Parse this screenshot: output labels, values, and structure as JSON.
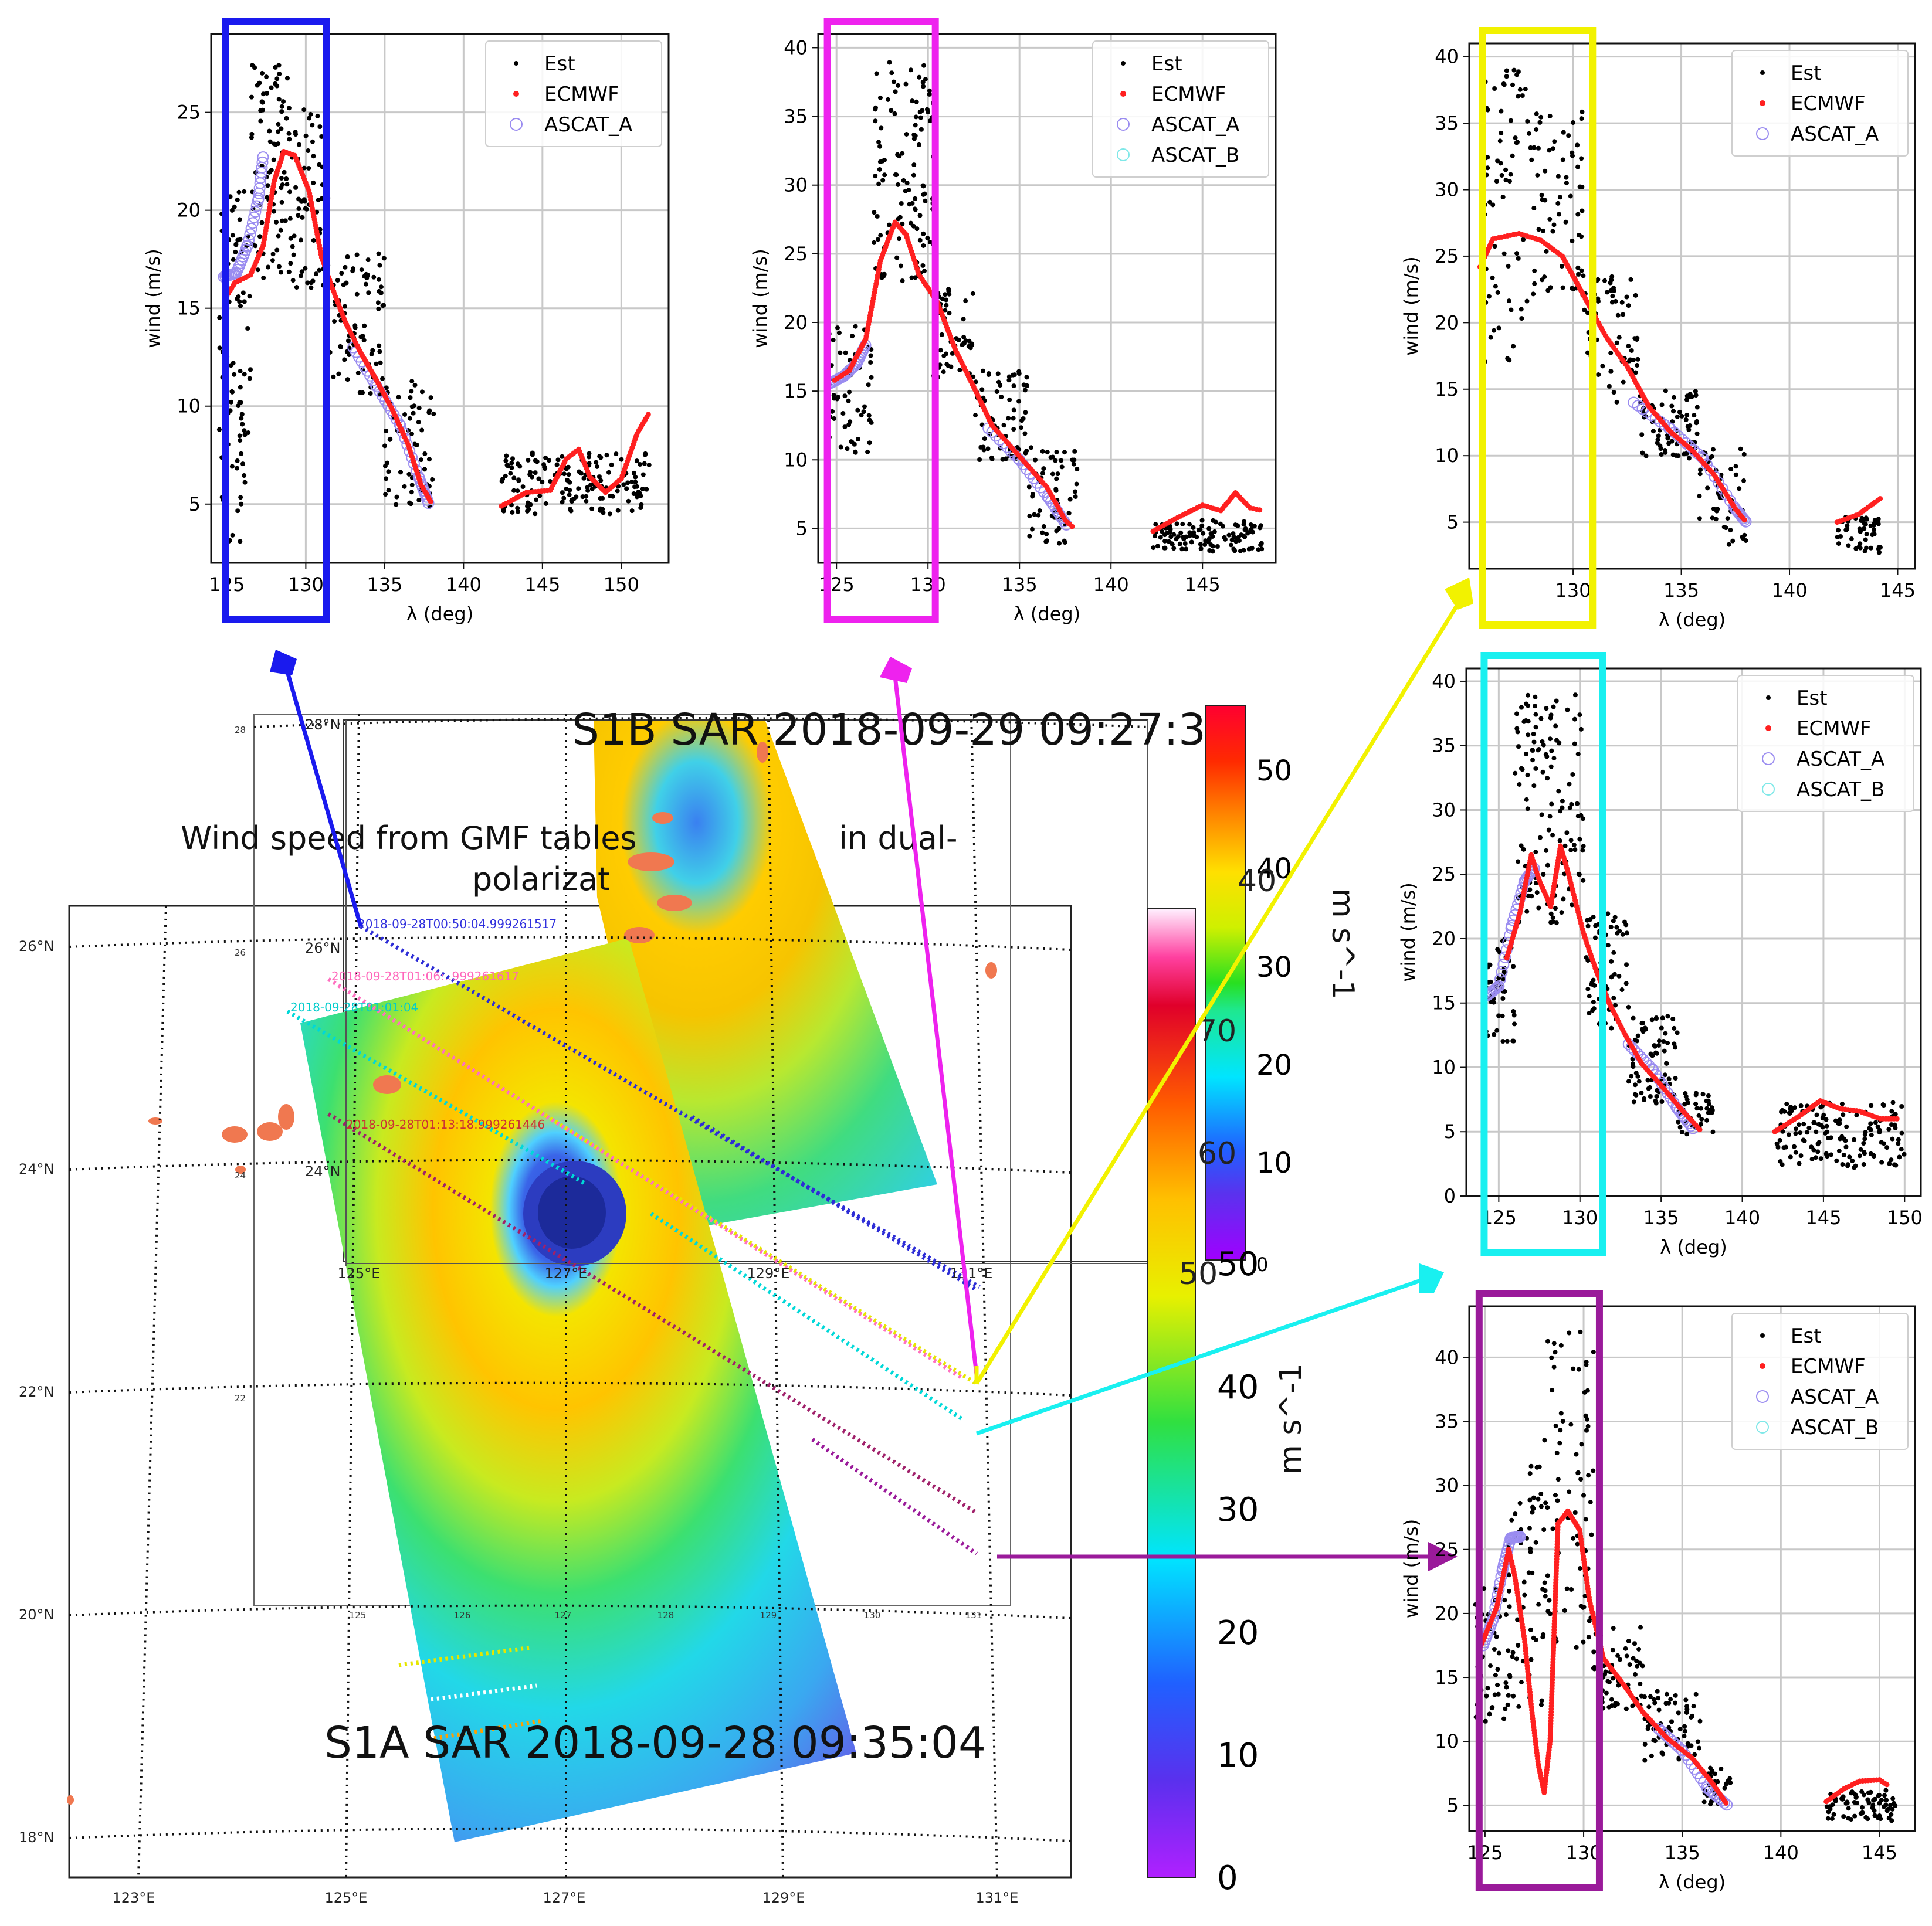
{
  "colors": {
    "est": "#000000",
    "ecmwf": "#ff2020",
    "ascat_a": "#9a8cf0",
    "ascat_b": "#7fe8e8",
    "box_blue": "#1a1aee",
    "box_magenta": "#ee22ee",
    "box_yellow": "#f2f200",
    "box_cyan": "#19f0f0",
    "box_purple": "#9a1a9a",
    "grid": "#c8c8c8"
  },
  "map": {
    "title_s1b": "S1B SAR 2018-09-29 09:27:36",
    "title_s1a": "S1A SAR 2018-09-28 09:35:04",
    "gmf_title_line1": "Wind speed from GMF tables",
    "gmf_title_mid": "in dual-",
    "gmf_title_line2": "polarizat",
    "lat_labels": [
      "26°N",
      "24°N",
      "22°N",
      "20°N",
      "18°N"
    ],
    "lon_labels": [
      "123°E",
      "125°E",
      "127°E",
      "129°E",
      "131°E"
    ],
    "inner_lat_labels": [
      "28°N",
      "26°N",
      "24°N"
    ],
    "inner_lon_labels": [
      "125°E",
      "127°E",
      "129°E",
      "131°E"
    ],
    "small_lat_labels": [
      "28",
      "26",
      "24",
      "22"
    ],
    "small_lon_labels": [
      "125",
      "126",
      "127",
      "128",
      "129",
      "130",
      "131"
    ],
    "track_labels": [
      {
        "text": "2018-09-28T00:50:04.999261517",
        "color": "#3030dd"
      },
      {
        "text": "2018-09-28T01:06:..999261617",
        "color": "#ff66bb"
      },
      {
        "text": "2018-09-28T01:01:04",
        "color": "#00cccc"
      },
      {
        "text": "2018-09-28T01:13:18.999261446",
        "color": "#cc3333"
      }
    ]
  },
  "colorbars": {
    "inner": {
      "ticks": [
        "0",
        "10",
        "20",
        "30",
        "40",
        "50"
      ],
      "label": "m s^-1"
    },
    "outer": {
      "ticks": [
        "0",
        "10",
        "20",
        "30",
        "40",
        "50"
      ],
      "label": "m s^-1"
    },
    "overlap_ticks": [
      "70",
      "60",
      "40",
      "50"
    ]
  },
  "chart_data": [
    {
      "type": "scatter",
      "id": "panel_blue",
      "xlabel": "λ (deg)",
      "ylabel": "wind (m/s)",
      "x_ticks": [
        125,
        130,
        135,
        140,
        145,
        150
      ],
      "y_ticks": [
        5,
        10,
        15,
        20,
        25
      ],
      "xlim": [
        124,
        153
      ],
      "ylim": [
        2,
        29
      ],
      "legend": [
        "Est",
        "ECMWF",
        "ASCAT_A"
      ],
      "legend_position": "top-right",
      "highlight_box_lon": [
        124.9,
        131.3
      ],
      "ecmwf_curve": [
        [
          124.9,
          15.5
        ],
        [
          125.5,
          16.3
        ],
        [
          126.5,
          16.7
        ],
        [
          127.3,
          18.2
        ],
        [
          128,
          21.5
        ],
        [
          128.6,
          23
        ],
        [
          129.3,
          22.8
        ],
        [
          130.2,
          21
        ],
        [
          131,
          17.6
        ],
        [
          131.7,
          16
        ],
        [
          132.5,
          14.3
        ],
        [
          133.5,
          12.7
        ],
        [
          134.5,
          11.3
        ],
        [
          135.5,
          9.8
        ],
        [
          136.5,
          8
        ],
        [
          137.3,
          6
        ],
        [
          138,
          5
        ]
      ],
      "ecmwf_curve_2": [
        [
          142.4,
          4.9
        ],
        [
          144,
          5.6
        ],
        [
          145.5,
          5.7
        ],
        [
          146.5,
          7.3
        ],
        [
          147.3,
          7.8
        ],
        [
          148,
          6.4
        ],
        [
          149,
          5.6
        ],
        [
          150,
          6.3
        ],
        [
          151,
          8.6
        ],
        [
          151.8,
          9.7
        ]
      ],
      "ascat_a_curve": [
        [
          124.8,
          16.6
        ],
        [
          125.6,
          16.8
        ],
        [
          126.3,
          18.2
        ],
        [
          127,
          20.6
        ],
        [
          127.3,
          22.8
        ]
      ],
      "ascat_a_curve_2": [
        [
          133,
          13
        ],
        [
          134.5,
          11
        ],
        [
          136,
          9
        ],
        [
          137.2,
          6.3
        ],
        [
          137.8,
          5
        ]
      ],
      "est_cloud": [
        {
          "lon": [
            124.5,
            126.5
          ],
          "low": 3,
          "high": 21,
          "n": 90
        },
        {
          "lon": [
            126.5,
            129
          ],
          "low": 16.5,
          "high": 27.5,
          "n": 90
        },
        {
          "lon": [
            129,
            131.5
          ],
          "low": 16,
          "high": 25.5,
          "n": 70
        },
        {
          "lon": [
            131.5,
            135
          ],
          "low": 10.5,
          "high": 17.8,
          "n": 80
        },
        {
          "lon": [
            135,
            138.2
          ],
          "low": 4.8,
          "high": 11.5,
          "n": 60
        },
        {
          "lon": [
            142.4,
            151.8
          ],
          "low": 4.5,
          "high": 7.7,
          "n": 160
        }
      ]
    },
    {
      "type": "scatter",
      "id": "panel_magenta",
      "xlabel": "λ (deg)",
      "ylabel": "wind (m/s)",
      "x_ticks": [
        125,
        130,
        135,
        140,
        145
      ],
      "y_ticks": [
        5,
        10,
        15,
        20,
        25,
        30,
        35,
        40
      ],
      "xlim": [
        124,
        149
      ],
      "ylim": [
        2.5,
        41
      ],
      "legend": [
        "Est",
        "ECMWF",
        "ASCAT_A",
        "ASCAT_B"
      ],
      "legend_position": "top-right",
      "highlight_box_lon": [
        124.5,
        130.4
      ],
      "ecmwf_curve": [
        [
          124.9,
          15.8
        ],
        [
          125.7,
          16.5
        ],
        [
          126.6,
          18.8
        ],
        [
          127.4,
          24.5
        ],
        [
          128.2,
          27.3
        ],
        [
          128.8,
          26.4
        ],
        [
          129.5,
          23.5
        ],
        [
          130.5,
          21.5
        ],
        [
          131.5,
          18
        ],
        [
          132.5,
          15.3
        ],
        [
          133.5,
          12.5
        ],
        [
          134.5,
          11
        ],
        [
          135.5,
          9.5
        ],
        [
          136.5,
          8
        ],
        [
          137.5,
          5.6
        ],
        [
          138,
          5
        ]
      ],
      "ecmwf_curve_2": [
        [
          142.3,
          4.8
        ],
        [
          143.5,
          5.7
        ],
        [
          145,
          6.7
        ],
        [
          146,
          6.3
        ],
        [
          146.8,
          7.6
        ],
        [
          147.6,
          6.5
        ],
        [
          148.3,
          6.3
        ]
      ],
      "ascat_a_curve": [
        [
          124.7,
          15.6
        ],
        [
          125.4,
          16.1
        ],
        [
          126.1,
          17
        ],
        [
          126.6,
          18.4
        ]
      ],
      "ascat_a_curve_2": [
        [
          133.3,
          12.3
        ],
        [
          135,
          10
        ],
        [
          136.6,
          7.2
        ],
        [
          137.6,
          5.2
        ]
      ],
      "est_cloud": [
        {
          "lon": [
            124.4,
            127
          ],
          "low": 10.5,
          "high": 20,
          "n": 60
        },
        {
          "lon": [
            127,
            130.3
          ],
          "low": 23,
          "high": 39,
          "n": 120
        },
        {
          "lon": [
            130.3,
            132.5
          ],
          "low": 16,
          "high": 23,
          "n": 50
        },
        {
          "lon": [
            132.5,
            135.5
          ],
          "low": 10,
          "high": 16.5,
          "n": 70
        },
        {
          "lon": [
            135.5,
            138.2
          ],
          "low": 3.8,
          "high": 11,
          "n": 60
        },
        {
          "lon": [
            142.3,
            148.3
          ],
          "low": 3.3,
          "high": 5.6,
          "n": 120
        }
      ]
    },
    {
      "type": "scatter",
      "id": "panel_yellow",
      "xlabel": "λ (deg)",
      "ylabel": "wind (m/s)",
      "x_ticks": [
        130,
        135,
        140,
        145
      ],
      "y_ticks": [
        5,
        10,
        15,
        20,
        25,
        30,
        35,
        40
      ],
      "xlim": [
        125.2,
        145.8
      ],
      "ylim": [
        1.5,
        41
      ],
      "legend": [
        "Est",
        "ECMWF",
        "ASCAT_A"
      ],
      "legend_position": "top-right",
      "highlight_box_lon": [
        125.8,
        130.9
      ],
      "ecmwf_curve": [
        [
          125.7,
          24.2
        ],
        [
          126.3,
          26.3
        ],
        [
          127.5,
          26.7
        ],
        [
          128.5,
          26.2
        ],
        [
          129.5,
          25
        ],
        [
          130.5,
          22
        ],
        [
          131.5,
          19
        ],
        [
          132.5,
          16.7
        ],
        [
          133.5,
          13.7
        ],
        [
          134.5,
          11.8
        ],
        [
          135.5,
          10.4
        ],
        [
          136.5,
          8.6
        ],
        [
          137.5,
          6
        ],
        [
          138,
          5
        ]
      ],
      "ecmwf_curve_2": [
        [
          142.2,
          5
        ],
        [
          143.2,
          5.6
        ],
        [
          144.3,
          6.9
        ]
      ],
      "ascat_a_curve": [
        [
          132.8,
          14
        ],
        [
          134.5,
          12
        ],
        [
          136,
          9.8
        ],
        [
          137.5,
          6
        ],
        [
          138,
          5
        ]
      ],
      "ascat_a_curve_2": [],
      "est_cloud": [
        {
          "lon": [
            125.8,
            128
          ],
          "low": 17,
          "high": 39,
          "n": 70
        },
        {
          "lon": [
            128,
            130.5
          ],
          "low": 22,
          "high": 36,
          "n": 70
        },
        {
          "lon": [
            130.5,
            133
          ],
          "low": 14,
          "high": 23.5,
          "n": 60
        },
        {
          "lon": [
            133,
            135.8
          ],
          "low": 9.5,
          "high": 15,
          "n": 70
        },
        {
          "lon": [
            135.8,
            138
          ],
          "low": 3.2,
          "high": 10.8,
          "n": 50
        },
        {
          "lon": [
            142.2,
            144.2
          ],
          "low": 2.7,
          "high": 5.4,
          "n": 50
        }
      ]
    },
    {
      "type": "scatter",
      "id": "panel_cyan",
      "xlabel": "λ (deg)",
      "ylabel": "wind (m/s)",
      "x_ticks": [
        125,
        130,
        135,
        140,
        145,
        150
      ],
      "y_ticks": [
        0,
        5,
        10,
        15,
        20,
        25,
        30,
        35,
        40
      ],
      "xlim": [
        123,
        151
      ],
      "ylim": [
        0,
        41
      ],
      "legend": [
        "Est",
        "ECMWF",
        "ASCAT_A",
        "ASCAT_B"
      ],
      "legend_position": "top-right",
      "highlight_box_lon": [
        124.1,
        131.4
      ],
      "ecmwf_curve": [
        [
          125.5,
          18.5
        ],
        [
          126.3,
          22
        ],
        [
          127,
          26.5
        ],
        [
          127.5,
          24.5
        ],
        [
          128.2,
          22.5
        ],
        [
          128.8,
          27.2
        ],
        [
          129.3,
          25
        ],
        [
          130.2,
          20.5
        ],
        [
          131,
          17.5
        ],
        [
          131.8,
          15
        ],
        [
          132.8,
          12.5
        ],
        [
          133.8,
          10.3
        ],
        [
          135,
          8.6
        ],
        [
          136.2,
          6.8
        ],
        [
          137.5,
          5
        ]
      ],
      "ecmwf_curve_2": [
        [
          142,
          5
        ],
        [
          143.5,
          6.2
        ],
        [
          144.8,
          7.4
        ],
        [
          146,
          6.8
        ],
        [
          147.2,
          6.6
        ],
        [
          148.5,
          6
        ],
        [
          149.7,
          6
        ]
      ],
      "ascat_a_curve": [
        [
          124.3,
          15.6
        ],
        [
          125,
          16.3
        ],
        [
          125.8,
          21
        ],
        [
          126.6,
          24.5
        ],
        [
          127.2,
          25.5
        ]
      ],
      "ascat_a_curve_2": [
        [
          133,
          11.8
        ],
        [
          134.5,
          9.8
        ],
        [
          136,
          6.8
        ],
        [
          137,
          5.2
        ]
      ],
      "est_cloud": [
        {
          "lon": [
            124.2,
            126
          ],
          "low": 12,
          "high": 20,
          "n": 50
        },
        {
          "lon": [
            126,
            130.3
          ],
          "low": 21,
          "high": 39,
          "n": 130
        },
        {
          "lon": [
            130.3,
            133
          ],
          "low": 13,
          "high": 22,
          "n": 70
        },
        {
          "lon": [
            133,
            136
          ],
          "low": 7,
          "high": 14,
          "n": 70
        },
        {
          "lon": [
            136,
            138.2
          ],
          "low": 4.8,
          "high": 8,
          "n": 40
        },
        {
          "lon": [
            142,
            150
          ],
          "low": 2.2,
          "high": 7.3,
          "n": 150
        }
      ]
    },
    {
      "type": "scatter",
      "id": "panel_purple",
      "xlabel": "λ (deg)",
      "ylabel": "wind (m/s)",
      "x_ticks": [
        125,
        130,
        135,
        140,
        145
      ],
      "y_ticks": [
        5,
        10,
        15,
        20,
        25,
        30,
        35,
        40
      ],
      "xlim": [
        124.2,
        146.8
      ],
      "ylim": [
        3,
        44
      ],
      "legend": [
        "Est",
        "ECMWF",
        "ASCAT_A",
        "ASCAT_B"
      ],
      "legend_position": "top-right",
      "highlight_box_lon": [
        124.7,
        130.8
      ],
      "ecmwf_curve": [
        [
          124.8,
          17.5
        ],
        [
          125.6,
          20.5
        ],
        [
          126.2,
          25
        ],
        [
          126.5,
          23
        ],
        [
          127,
          18
        ],
        [
          127.4,
          12
        ],
        [
          127.7,
          8.2
        ],
        [
          128,
          6
        ],
        [
          128.3,
          10
        ],
        [
          128.7,
          27
        ],
        [
          129.2,
          28
        ],
        [
          129.8,
          26.5
        ],
        [
          130.3,
          21
        ],
        [
          131,
          16.5
        ],
        [
          132,
          14.5
        ],
        [
          133,
          12.3
        ],
        [
          134.2,
          10.3
        ],
        [
          135.5,
          8.7
        ],
        [
          136.5,
          6.8
        ],
        [
          137.3,
          5
        ]
      ],
      "ecmwf_curve_2": [
        [
          142.3,
          5.3
        ],
        [
          143.2,
          6.3
        ],
        [
          144,
          6.9
        ],
        [
          145,
          7
        ],
        [
          145.5,
          6.5
        ]
      ],
      "ascat_a_curve": [
        [
          124.9,
          17.5
        ],
        [
          125.4,
          19.5
        ],
        [
          125.9,
          23.5
        ],
        [
          126.3,
          25.9
        ],
        [
          126.8,
          26
        ]
      ],
      "ascat_a_curve_2": [
        [
          133.8,
          11
        ],
        [
          135,
          9.3
        ],
        [
          136.3,
          6.3
        ],
        [
          137.3,
          5
        ]
      ],
      "est_cloud": [
        {
          "lon": [
            124.5,
            126.2
          ],
          "low": 11.5,
          "high": 22,
          "n": 50
        },
        {
          "lon": [
            126.2,
            128
          ],
          "low": 12,
          "high": 32.5,
          "n": 60
        },
        {
          "lon": [
            128,
            130.5
          ],
          "low": 17,
          "high": 42,
          "n": 80
        },
        {
          "lon": [
            130.5,
            133
          ],
          "low": 12.5,
          "high": 19,
          "n": 60
        },
        {
          "lon": [
            133,
            136
          ],
          "low": 8.5,
          "high": 14,
          "n": 60
        },
        {
          "lon": [
            136,
            137.5
          ],
          "low": 5,
          "high": 8,
          "n": 30
        },
        {
          "lon": [
            142.3,
            145.8
          ],
          "low": 3.8,
          "high": 6.2,
          "n": 70
        }
      ]
    }
  ]
}
